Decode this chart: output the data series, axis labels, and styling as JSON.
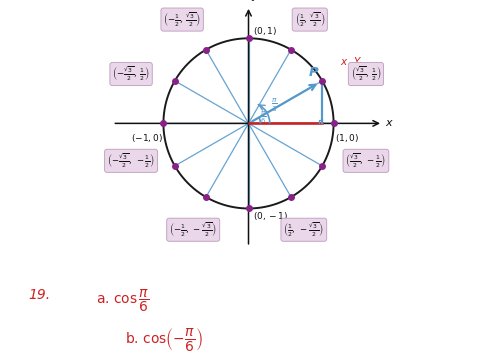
{
  "bg_color": "#ffffff",
  "circle_color": "#1a1a1a",
  "spoke_color": "#5599cc",
  "point_color": "#882288",
  "red_color": "#cc2222",
  "blue_color": "#5599cc",
  "label_bg": "#ead8ea",
  "label_border": "#c0a0c0",
  "points": [
    [
      1.0,
      0.0
    ],
    [
      0.866,
      0.5
    ],
    [
      0.5,
      0.866
    ],
    [
      0.0,
      1.0
    ],
    [
      -0.5,
      0.866
    ],
    [
      -0.866,
      0.5
    ],
    [
      -1.0,
      0.0
    ],
    [
      -0.866,
      -0.5
    ],
    [
      -0.5,
      -0.866
    ],
    [
      0.0,
      -1.0
    ],
    [
      0.5,
      -0.866
    ],
    [
      0.866,
      -0.5
    ]
  ],
  "ex_color": "#cc2222",
  "xlim": [
    -1.85,
    1.65
  ],
  "ylim": [
    -1.85,
    1.45
  ]
}
